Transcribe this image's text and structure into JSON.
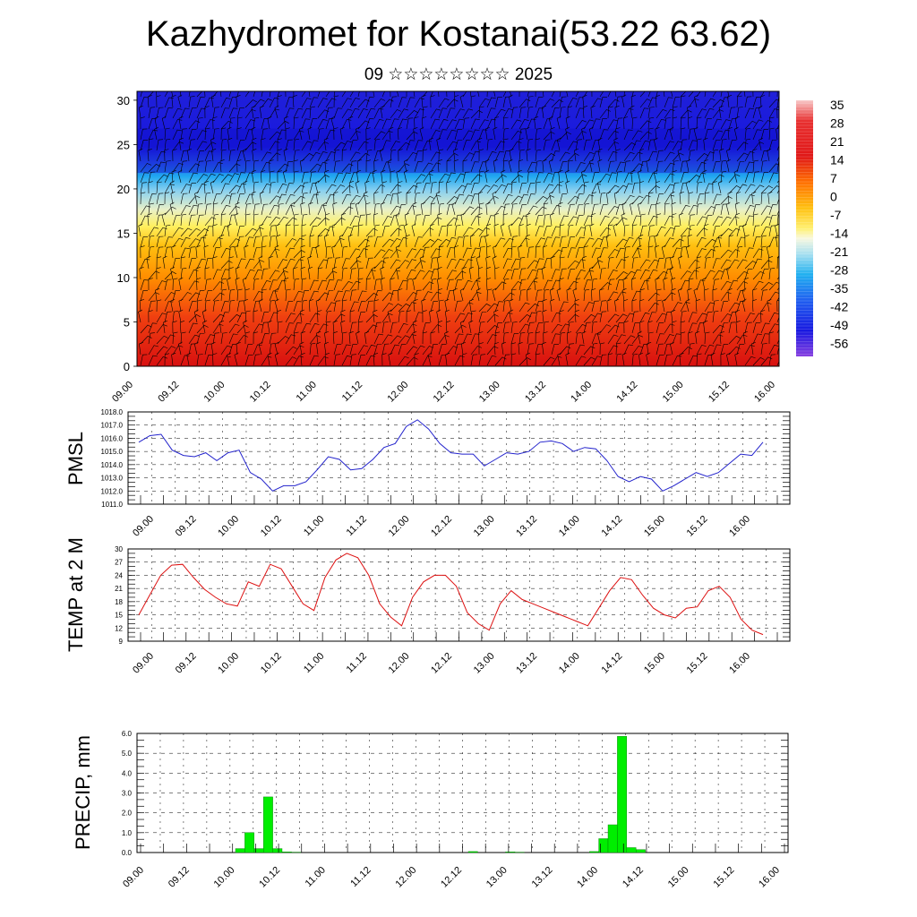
{
  "header": {
    "title": "Kazhydromet for Kostanai(53.22 63.62)",
    "subtitle": "09 ☆☆☆☆☆☆☆☆ 2025"
  },
  "colors": {
    "pmsl_line": "#2222cc",
    "temp_line": "#dd1111",
    "precip_bar": "#00ee00",
    "barb": "#000000"
  },
  "chart_data": [
    {
      "type": "heatmap",
      "name": "temperature-cross-section",
      "x_tick_labels": [
        "09.00",
        "09.12",
        "10.00",
        "10.12",
        "11.00",
        "11.12",
        "12.00",
        "12.12",
        "13.00",
        "13.12",
        "14.00",
        "14.12",
        "15.00",
        "15.12",
        "16.00"
      ],
      "y_ticks": [
        0,
        5,
        10,
        15,
        20,
        25,
        30
      ],
      "ylim": [
        0,
        31
      ],
      "colorbar_labels": [
        "35",
        "28",
        "21",
        "14",
        "7",
        "0",
        "-7",
        "-14",
        "-21",
        "-28",
        "-35",
        "-42",
        "-49",
        "-56"
      ],
      "colorbar_range": [
        -60,
        38
      ],
      "temperature_profile": {
        "levels": [
          0,
          3,
          6,
          9,
          12,
          15,
          17,
          19,
          21,
          23,
          25,
          28,
          31
        ],
        "values": [
          30,
          25,
          18,
          10,
          2,
          -8,
          -14,
          -28,
          -40,
          -50,
          -54,
          -56,
          -55
        ]
      },
      "overlay": "wind barbs"
    },
    {
      "type": "line",
      "name": "PMSL",
      "ylabel": "PMSL",
      "x_tick_labels": [
        "09.00",
        "09.12",
        "10.00",
        "10.12",
        "11.00",
        "11.12",
        "12.00",
        "12.12",
        "13.00",
        "13.12",
        "14.00",
        "14.12",
        "15.00",
        "15.12",
        "16.00"
      ],
      "y_ticks": [
        "1011.0",
        "1012.0",
        "1013.0",
        "1014.0",
        "1015.0",
        "1016.0",
        "1017.0",
        "1018.0"
      ],
      "ylim": [
        1011,
        1018
      ],
      "grid": true,
      "values": [
        1015.7,
        1016.2,
        1016.3,
        1015.1,
        1014.7,
        1014.6,
        1014.9,
        1014.3,
        1014.9,
        1015.1,
        1013.4,
        1012.9,
        1012.0,
        1012.4,
        1012.4,
        1012.7,
        1013.6,
        1014.6,
        1014.4,
        1013.6,
        1013.7,
        1014.4,
        1015.3,
        1015.6,
        1016.9,
        1017.4,
        1016.7,
        1015.6,
        1014.9,
        1014.8,
        1014.8,
        1013.9,
        1014.4,
        1014.9,
        1014.8,
        1015.0,
        1015.7,
        1015.8,
        1015.6,
        1015.0,
        1015.3,
        1015.2,
        1014.3,
        1013.1,
        1012.7,
        1013.1,
        1012.9,
        1012.0,
        1012.4,
        1012.9,
        1013.4,
        1013.1,
        1013.4,
        1014.1,
        1014.8,
        1014.7,
        1015.7
      ]
    },
    {
      "type": "line",
      "name": "TEMP at 2 M",
      "ylabel": "TEMP at 2 M",
      "x_tick_labels": [
        "09.00",
        "09.12",
        "10.00",
        "10.12",
        "11.00",
        "11.12",
        "12.00",
        "12.12",
        "13.00",
        "13.12",
        "14.00",
        "14.12",
        "15.00",
        "15.12",
        "16.00"
      ],
      "y_ticks": [
        "9",
        "12",
        "15",
        "18",
        "21",
        "24",
        "27",
        "30"
      ],
      "ylim": [
        9,
        30
      ],
      "grid": true,
      "values": [
        15.0,
        19.5,
        24.0,
        26.3,
        26.5,
        23.5,
        20.8,
        19.0,
        17.5,
        17.0,
        22.5,
        21.5,
        26.5,
        25.5,
        21.5,
        17.5,
        16.0,
        23.5,
        27.5,
        29.0,
        28.0,
        24.0,
        17.5,
        14.5,
        12.5,
        19.0,
        22.5,
        24.0,
        24.0,
        21.5,
        15.5,
        13.0,
        11.5,
        17.5,
        20.5,
        18.5,
        17.5,
        16.5,
        15.5,
        14.5,
        13.5,
        12.5,
        16.5,
        20.5,
        23.5,
        23.0,
        19.5,
        16.5,
        15.0,
        14.3,
        16.5,
        16.8,
        20.5,
        21.5,
        19.0,
        14.0,
        11.5,
        10.5
      ]
    },
    {
      "type": "bar",
      "name": "PRECIP, mm",
      "ylabel": "PRECIP, mm",
      "x_tick_labels": [
        "09.00",
        "09.12",
        "10.00",
        "10.12",
        "11.00",
        "11.12",
        "12.00",
        "12.12",
        "13.00",
        "13.12",
        "14.00",
        "14.12",
        "15.00",
        "15.12",
        "16.00"
      ],
      "y_ticks": [
        "0.0",
        "1.0",
        "2.0",
        "3.0",
        "4.0",
        "5.0",
        "6.0"
      ],
      "ylim": [
        0,
        6
      ],
      "grid": true,
      "values": [
        0,
        0,
        0,
        0,
        0,
        0,
        0,
        0,
        0,
        0,
        0.2,
        1.0,
        0.2,
        2.8,
        0.2,
        0.03,
        0.02,
        0,
        0,
        0,
        0,
        0,
        0,
        0,
        0,
        0,
        0,
        0,
        0,
        0,
        0,
        0,
        0,
        0,
        0,
        0.05,
        0,
        0,
        0,
        0.03,
        0.02,
        0,
        0,
        0,
        0,
        0,
        0,
        0,
        0.05,
        0.7,
        1.4,
        5.85,
        0.25,
        0.15,
        0,
        0,
        0
      ]
    }
  ]
}
